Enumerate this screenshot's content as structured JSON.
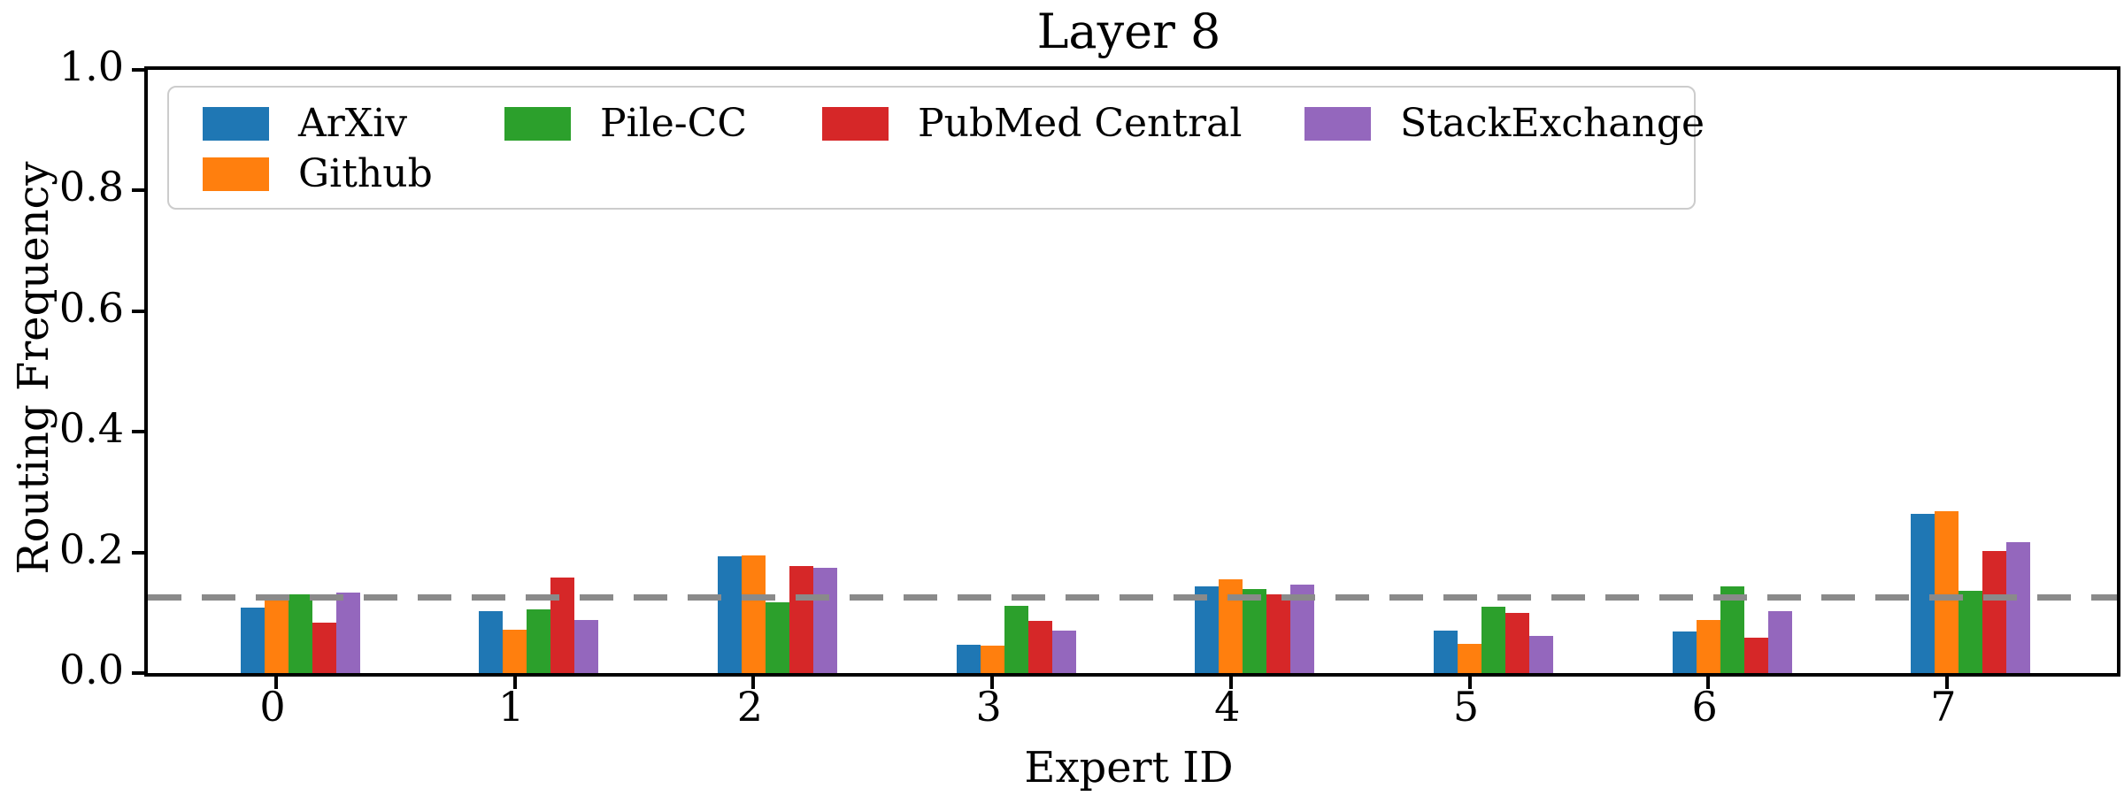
{
  "figure": {
    "title": "Layer 8",
    "xlabel": "Expert ID",
    "ylabel": "Routing Frequency"
  },
  "chart_data": {
    "type": "bar",
    "title": "Layer 8",
    "xlabel": "Expert ID",
    "ylabel": "Routing Frequency",
    "categories": [
      "0",
      "1",
      "2",
      "3",
      "4",
      "5",
      "6",
      "7"
    ],
    "series": [
      {
        "name": "ArXiv",
        "color": "#1f77b4",
        "values": [
          0.108,
          0.102,
          0.193,
          0.047,
          0.143,
          0.071,
          0.069,
          0.264
        ]
      },
      {
        "name": "Github",
        "color": "#ff7f0e",
        "values": [
          0.123,
          0.072,
          0.195,
          0.046,
          0.156,
          0.048,
          0.088,
          0.269
        ]
      },
      {
        "name": "Pile-CC",
        "color": "#2ca02c",
        "values": [
          0.13,
          0.105,
          0.118,
          0.112,
          0.14,
          0.11,
          0.143,
          0.137
        ]
      },
      {
        "name": "PubMed Central",
        "color": "#d62728",
        "values": [
          0.083,
          0.158,
          0.178,
          0.087,
          0.131,
          0.099,
          0.058,
          0.202
        ]
      },
      {
        "name": "StackExchange",
        "color": "#9467bd",
        "values": [
          0.134,
          0.088,
          0.175,
          0.071,
          0.146,
          0.061,
          0.103,
          0.217
        ]
      }
    ],
    "yticks": [
      "0.0",
      "0.2",
      "0.4",
      "0.6",
      "0.8",
      "1.0"
    ],
    "ylim": [
      0.0,
      1.0
    ],
    "grid": false,
    "reference_line": {
      "value": 0.125,
      "style": "dashed",
      "color": "#8a8a8a"
    },
    "legend": {
      "position": "upper left",
      "ncol": 4,
      "order": [
        "ArXiv",
        "Github",
        "Pile-CC",
        "PubMed Central",
        "StackExchange"
      ]
    }
  }
}
